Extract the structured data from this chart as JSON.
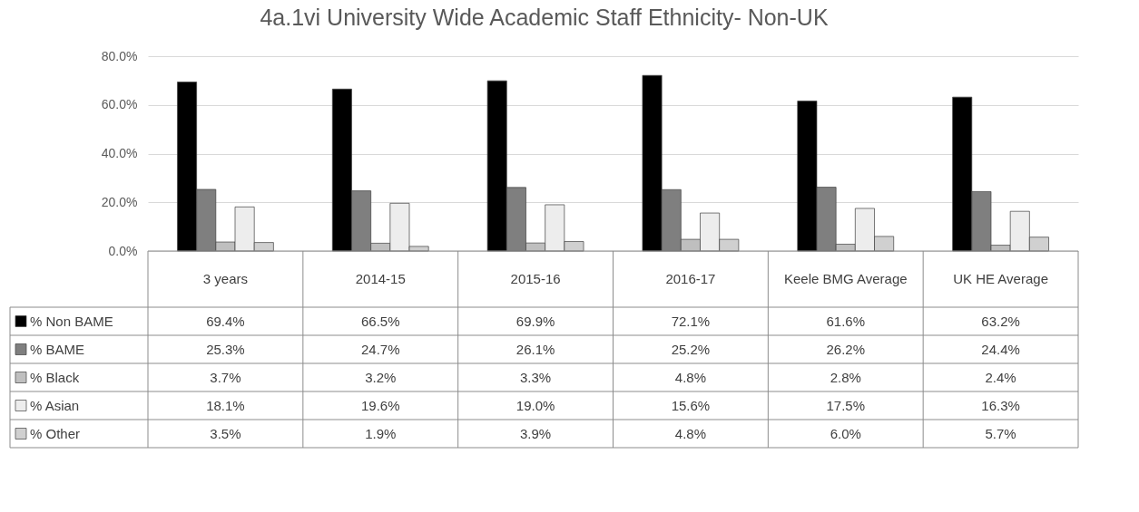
{
  "chart_data": {
    "type": "bar",
    "title": "4a.1vi University Wide Academic Staff Ethnicity- Non-UK",
    "categories": [
      "3 years",
      "2014-15",
      "2015-16",
      "2016-17",
      "Keele BMG Average",
      "UK HE Average"
    ],
    "series": [
      {
        "name": "% Non BAME",
        "color": "#000000",
        "values": [
          69.4,
          66.5,
          69.9,
          72.1,
          61.6,
          63.2
        ],
        "value_labels": [
          "69.4%",
          "66.5%",
          "69.9%",
          "72.1%",
          "61.6%",
          "63.2%"
        ]
      },
      {
        "name": "% BAME",
        "color": "#7f7f7f",
        "values": [
          25.3,
          24.7,
          26.1,
          25.2,
          26.2,
          24.4
        ],
        "value_labels": [
          "25.3%",
          "24.7%",
          "26.1%",
          "25.2%",
          "26.2%",
          "24.4%"
        ]
      },
      {
        "name": "% Black",
        "color": "#bfbfbf",
        "values": [
          3.7,
          3.2,
          3.3,
          4.8,
          2.8,
          2.4
        ],
        "value_labels": [
          "3.7%",
          "3.2%",
          "3.3%",
          "4.8%",
          "2.8%",
          "2.4%"
        ]
      },
      {
        "name": "% Asian",
        "color": "#ededed",
        "values": [
          18.1,
          19.6,
          19.0,
          15.6,
          17.5,
          16.3
        ],
        "value_labels": [
          "18.1%",
          "19.6%",
          "19.0%",
          "15.6%",
          "17.5%",
          "16.3%"
        ]
      },
      {
        "name": "% Other",
        "color": "#d0d0d0",
        "values": [
          3.5,
          1.9,
          3.9,
          4.8,
          6.0,
          5.7
        ],
        "value_labels": [
          "3.5%",
          "1.9%",
          "3.9%",
          "4.8%",
          "6.0%",
          "5.7%"
        ]
      }
    ],
    "ylim": [
      0,
      80
    ],
    "yticks": [
      {
        "value": 0,
        "label": "0.0%"
      },
      {
        "value": 20,
        "label": "20.0%"
      },
      {
        "value": 40,
        "label": "40.0%"
      },
      {
        "value": 60,
        "label": "60.0%"
      },
      {
        "value": 80,
        "label": "80.0%"
      }
    ],
    "grid": "y",
    "legend": "bottom"
  }
}
